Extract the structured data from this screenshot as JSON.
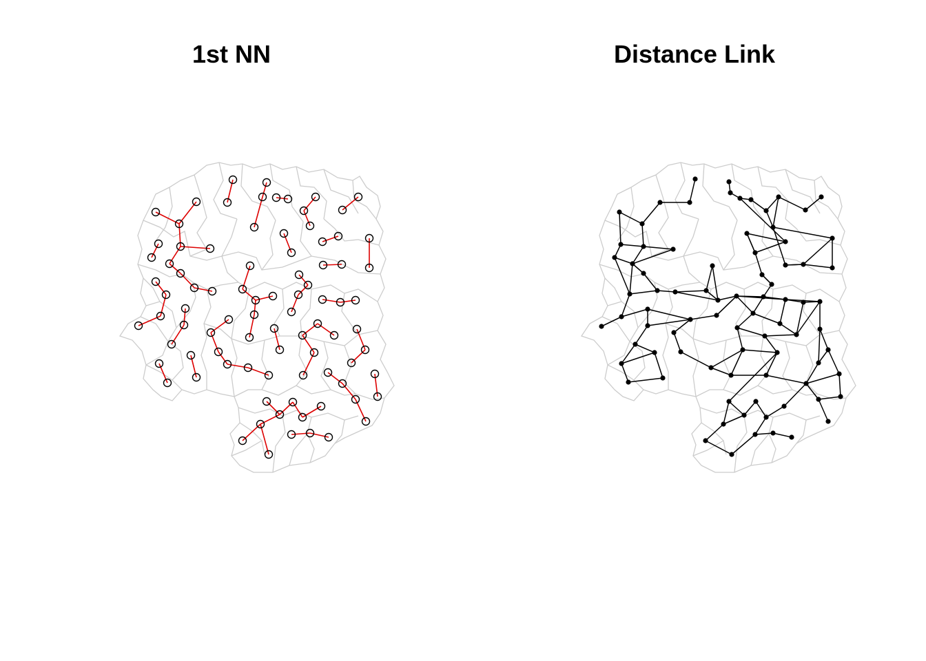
{
  "panels": [
    {
      "title": "1st NN",
      "style": {
        "outline": "#cccccc",
        "link": "#dd0000",
        "point": "open-circle"
      }
    },
    {
      "title": "Distance Link",
      "style": {
        "outline": "#cccccc",
        "link": "#000000",
        "point": "filled-dot"
      }
    }
  ]
}
